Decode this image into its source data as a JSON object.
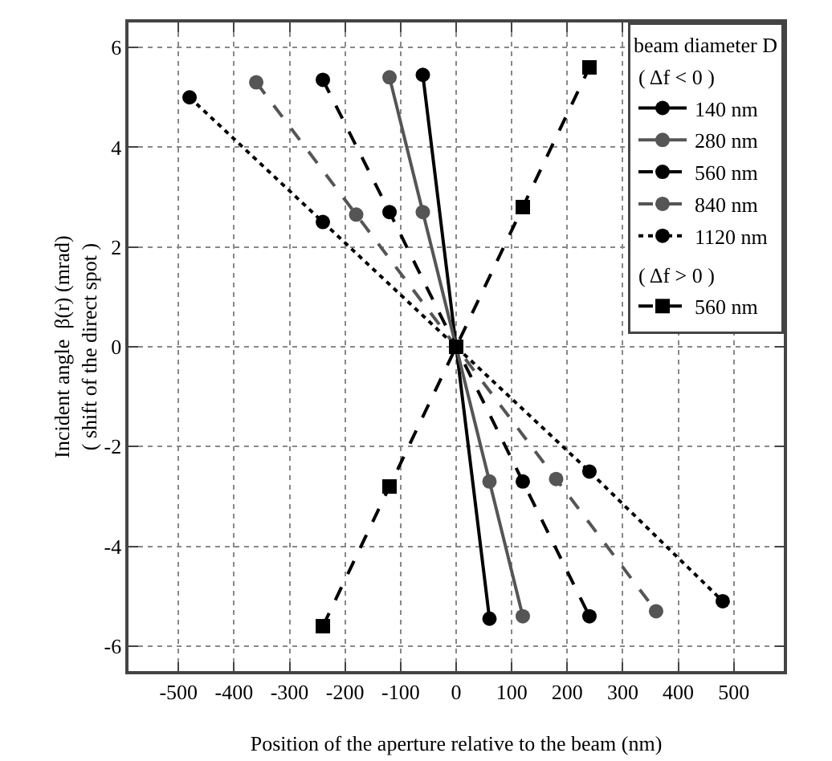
{
  "chart_data": {
    "type": "line",
    "xlabel": "Position of the aperture relative to the beam (nm)",
    "ylabel": "Incident angle  β(r) (mrad)\n( shift of the direct spot )",
    "legend_title": "beam diameter D",
    "annotations": [
      "( Δf < 0 )",
      "( Δf > 0 )"
    ],
    "xlim": [
      -590,
      590
    ],
    "xticks": [
      -500,
      -400,
      -300,
      -200,
      -100,
      0,
      100,
      200,
      300,
      400,
      500
    ],
    "ylim": [
      -6.5,
      6.5
    ],
    "yticks": [
      -6,
      -4,
      -2,
      0,
      2,
      4,
      6
    ],
    "grid": true,
    "legend": "top right",
    "series": [
      {
        "name": "140 nm",
        "color": "#000000",
        "line_style": "solid",
        "marker": "circle",
        "x": [
          -60,
          0,
          60
        ],
        "values": [
          5.45,
          0,
          -5.45
        ]
      },
      {
        "name": "280 nm",
        "color": "#555555",
        "line_style": "solid",
        "marker": "circle",
        "x": [
          -120,
          -60,
          0,
          60,
          120
        ],
        "values": [
          5.4,
          2.7,
          0,
          -2.7,
          -5.4
        ]
      },
      {
        "name": "560 nm",
        "color": "#000000",
        "line_style": "dashed",
        "marker": "circle",
        "x": [
          -240,
          -120,
          0,
          120,
          240
        ],
        "values": [
          5.35,
          2.7,
          0,
          -2.7,
          -5.4
        ]
      },
      {
        "name": "840 nm",
        "color": "#555555",
        "line_style": "dashed",
        "marker": "circle",
        "x": [
          -360,
          -180,
          0,
          180,
          360
        ],
        "values": [
          5.3,
          2.65,
          0,
          -2.65,
          -5.3
        ]
      },
      {
        "name": "1120 nm",
        "color": "#000000",
        "line_style": "dotted",
        "marker": "circle",
        "x": [
          -480,
          -240,
          0,
          240,
          480
        ],
        "values": [
          5.0,
          2.5,
          0,
          -2.5,
          -5.1
        ]
      },
      {
        "name": "560 nm",
        "color": "#000000",
        "line_style": "dashed",
        "marker": "square",
        "x": [
          -240,
          -120,
          0,
          120,
          240
        ],
        "values": [
          -5.6,
          -2.8,
          0,
          2.8,
          5.6
        ]
      }
    ]
  }
}
